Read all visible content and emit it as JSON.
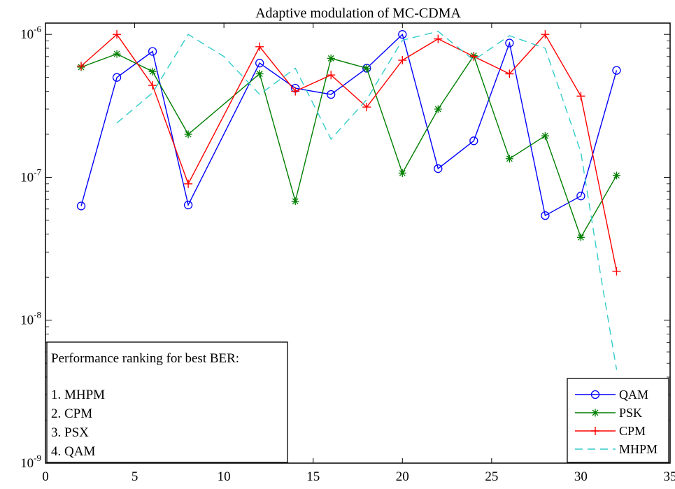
{
  "chart_data": {
    "type": "line",
    "title": "Adaptive modulation of MC-CDMA",
    "xlabel": "",
    "ylabel": "",
    "xlim": [
      0,
      35
    ],
    "ylim": [
      1e-09,
      1.2e-06
    ],
    "yscale": "log",
    "grid": false,
    "x_ticks": [
      0,
      5,
      10,
      15,
      20,
      25,
      30,
      35
    ],
    "y_ticks": [
      {
        "value": 1e-09,
        "base": "10",
        "exp": "-9"
      },
      {
        "value": 1e-08,
        "base": "10",
        "exp": "-8"
      },
      {
        "value": 1e-07,
        "base": "10",
        "exp": "-7"
      },
      {
        "value": 1e-06,
        "base": "10",
        "exp": "-6"
      }
    ],
    "legend_position": "bottom-right",
    "series": [
      {
        "name": "QAM",
        "color": "#0000ff",
        "marker": "circle",
        "dash": "solid",
        "x": [
          2,
          4,
          6,
          8,
          12,
          14,
          16,
          18,
          20,
          22,
          24,
          26,
          28,
          30,
          32
        ],
        "y": [
          6.3e-08,
          5e-07,
          7.6e-07,
          6.4e-08,
          6.3e-07,
          4.2e-07,
          3.8e-07,
          5.8e-07,
          1e-06,
          1.15e-07,
          1.8e-07,
          8.7e-07,
          5.4e-08,
          7.4e-08,
          5.6e-07
        ]
      },
      {
        "name": "PSK",
        "color": "#007f00",
        "marker": "star",
        "dash": "solid",
        "x": [
          2,
          4,
          6,
          8,
          12,
          14,
          16,
          18,
          20,
          22,
          24,
          26,
          28,
          30,
          32
        ],
        "y": [
          5.9e-07,
          7.3e-07,
          5.5e-07,
          2e-07,
          5.3e-07,
          6.8e-08,
          6.8e-07,
          5.8e-07,
          1.07e-07,
          3e-07,
          7.1e-07,
          1.35e-07,
          1.95e-07,
          3.8e-08,
          1.03e-07
        ]
      },
      {
        "name": "CPM",
        "color": "#ff0000",
        "marker": "plus",
        "dash": "solid",
        "x": [
          2,
          4,
          6,
          8,
          12,
          14,
          16,
          18,
          20,
          22,
          24,
          26,
          28,
          30,
          32
        ],
        "y": [
          6e-07,
          1e-06,
          4.4e-07,
          9e-08,
          8.2e-07,
          4e-07,
          5.2e-07,
          3.1e-07,
          6.6e-07,
          9.3e-07,
          7e-07,
          5.3e-07,
          1e-06,
          3.7e-07,
          2.2e-08
        ]
      },
      {
        "name": "MHPM",
        "color": "#33cccc",
        "marker": "none",
        "dash": "dashed",
        "x": [
          4,
          6,
          8,
          10,
          12,
          14,
          16,
          18,
          20,
          22,
          24,
          26,
          28,
          30,
          31,
          32
        ],
        "y": [
          2.4e-07,
          3.9e-07,
          1e-06,
          7e-07,
          3.8e-07,
          5.8e-07,
          1.85e-07,
          3.5e-07,
          9.1e-07,
          1.05e-06,
          6.6e-07,
          9.8e-07,
          8e-07,
          1.5e-07,
          2.5e-08,
          4.5e-09
        ]
      }
    ],
    "annotation": {
      "heading": "Performance ranking for best BER:",
      "items": [
        "1. MHPM",
        "2. CPM",
        "3. PSX",
        "4. QAM"
      ]
    }
  }
}
